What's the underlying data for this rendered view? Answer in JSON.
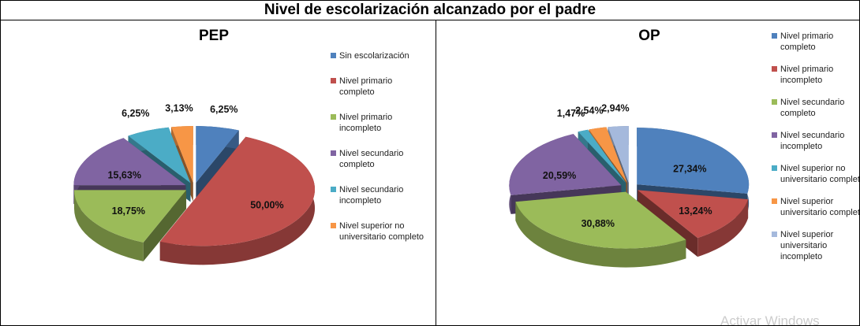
{
  "title": "Nivel de escolarización alcanzado por el padre",
  "watermark": "Activar Windows",
  "chart_data": [
    {
      "type": "pie",
      "title": "PEP",
      "legend": "right",
      "categories": [
        "Sin escolarización",
        "Nivel primario completo",
        "Nivel primario incompleto",
        "Nivel secundario completo",
        "Nivel secundario incompleto",
        "Nivel superior no universitario completo"
      ],
      "values": [
        6.25,
        50.0,
        18.75,
        15.63,
        6.25,
        3.13
      ],
      "value_labels": [
        "6,25%",
        "50,00%",
        "18,75%",
        "15,63%",
        "6,25%",
        "3,13%"
      ],
      "colors": [
        "#4f81bd",
        "#c0504d",
        "#9bbb59",
        "#8064a2",
        "#4bacc6",
        "#f79646"
      ]
    },
    {
      "type": "pie",
      "title": "OP",
      "legend": "right",
      "categories": [
        "Nivel primario completo",
        "Nivel primario incompleto",
        "Nivel secundario completo",
        "Nivel secundario incompleto",
        "Nivel superior no universitario completo",
        "Nivel superior universitario completo",
        "Nivel superior universitario incompleto"
      ],
      "values": [
        27.34,
        13.24,
        30.88,
        20.59,
        1.47,
        2.54,
        2.94
      ],
      "value_labels": [
        "27,34%",
        "13,24%",
        "30,88%",
        "20,59%",
        "1,47%",
        "2,54%",
        "2,94%"
      ],
      "colors": [
        "#4f81bd",
        "#c0504d",
        "#9bbb59",
        "#8064a2",
        "#4bacc6",
        "#f79646",
        "#a5b9dc"
      ]
    }
  ]
}
